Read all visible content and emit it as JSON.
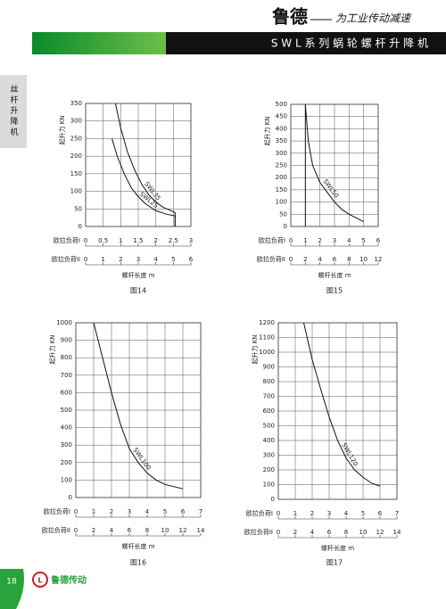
{
  "header": {
    "brand": "鲁德",
    "slogan": "为工业传动减速",
    "banner": "S W L 系 列 蜗 轮 螺 杆 升 降 机"
  },
  "side_tab": "丝杆升降机",
  "footer": {
    "page": "18",
    "logo": "鲁德传动"
  },
  "chart_data": [
    {
      "type": "line",
      "title": "图14",
      "ylabel": "起升力 KN",
      "xlabel": "欧拉负荷I",
      "x2label": "欧拉负荷II",
      "length_label": "螺杆长度 m",
      "xlim": [
        0,
        3
      ],
      "xticks": [
        0,
        0.5,
        1,
        1.5,
        2,
        2.5,
        3
      ],
      "x2lim": [
        0,
        6
      ],
      "x2ticks": [
        0,
        1,
        2,
        3,
        4,
        5,
        6
      ],
      "ylim": [
        0,
        350
      ],
      "yticks": [
        0,
        50,
        100,
        150,
        200,
        250,
        300,
        350
      ],
      "grid": true,
      "series": [
        {
          "name": "SWL35",
          "color": "#111111",
          "x": [
            0.85,
            1.0,
            1.2,
            1.4,
            1.6,
            1.8,
            2.0,
            2.2,
            2.5,
            2.55,
            2.55
          ],
          "values": [
            350,
            280,
            210,
            160,
            120,
            90,
            70,
            55,
            42,
            40,
            0
          ]
        },
        {
          "name": "SWL25",
          "color": "#111111",
          "x": [
            0.75,
            0.9,
            1.1,
            1.3,
            1.5,
            1.7,
            2.0,
            2.3,
            2.55,
            2.55
          ],
          "values": [
            250,
            200,
            150,
            110,
            85,
            65,
            45,
            35,
            30,
            0
          ]
        }
      ]
    },
    {
      "type": "line",
      "title": "图15",
      "ylabel": "起升力 KN",
      "xlabel": "欧拉负荷I",
      "x2label": "欧拉负荷II",
      "length_label": "螺杆长度 m",
      "xlim": [
        0,
        6
      ],
      "xticks": [
        0,
        1,
        2,
        3,
        4,
        5,
        6
      ],
      "x2lim": [
        0,
        12
      ],
      "x2ticks": [
        0,
        2,
        4,
        6,
        8,
        10,
        12
      ],
      "ylim": [
        0,
        500
      ],
      "yticks": [
        0,
        50,
        100,
        150,
        200,
        250,
        300,
        350,
        400,
        450,
        500
      ],
      "grid": true,
      "series": [
        {
          "name": "SWL50",
          "color": "#111111",
          "x": [
            1,
            1,
            1.2,
            1.5,
            2,
            2.5,
            3,
            3.5,
            4,
            4.5,
            5
          ],
          "values": [
            0,
            500,
            350,
            250,
            180,
            140,
            100,
            70,
            50,
            35,
            20
          ]
        }
      ]
    },
    {
      "type": "line",
      "title": "图16",
      "ylabel": "起升力 KN",
      "xlabel": "欧拉负荷I",
      "x2label": "欧拉负荷II",
      "length_label": "螺杆长度 m",
      "xlim": [
        0,
        7
      ],
      "xticks": [
        0,
        1,
        2,
        3,
        4,
        5,
        6,
        7
      ],
      "x2lim": [
        0,
        14
      ],
      "x2ticks": [
        0,
        2,
        4,
        6,
        8,
        10,
        12,
        14
      ],
      "ylim": [
        0,
        1000
      ],
      "yticks": [
        0,
        100,
        200,
        300,
        400,
        500,
        600,
        700,
        800,
        900,
        1000
      ],
      "grid": true,
      "series": [
        {
          "name": "SWL100",
          "color": "#111111",
          "x": [
            1,
            1.5,
            2,
            2.5,
            3,
            3.5,
            4,
            4.5,
            5,
            6
          ],
          "values": [
            1000,
            800,
            600,
            420,
            280,
            200,
            140,
            100,
            75,
            50
          ]
        }
      ]
    },
    {
      "type": "line",
      "title": "图17",
      "ylabel": "起升力 KN",
      "xlabel": "欧拉负荷I",
      "x2label": "欧拉负荷II",
      "length_label": "螺杆长度 m",
      "xlim": [
        0,
        7
      ],
      "xticks": [
        0,
        1,
        2,
        3,
        4,
        5,
        6,
        7
      ],
      "x2lim": [
        0,
        14
      ],
      "x2ticks": [
        0,
        2,
        4,
        6,
        8,
        10,
        12,
        14
      ],
      "ylim": [
        0,
        1200
      ],
      "yticks": [
        0,
        100,
        200,
        300,
        400,
        500,
        600,
        700,
        800,
        900,
        1000,
        1100,
        1200
      ],
      "grid": true,
      "series": [
        {
          "name": "SWL120",
          "color": "#111111",
          "x": [
            1.5,
            2,
            2.5,
            3,
            3.5,
            4,
            4.5,
            5,
            5.5,
            6
          ],
          "values": [
            1200,
            950,
            750,
            560,
            400,
            280,
            200,
            150,
            110,
            90
          ]
        }
      ]
    }
  ]
}
